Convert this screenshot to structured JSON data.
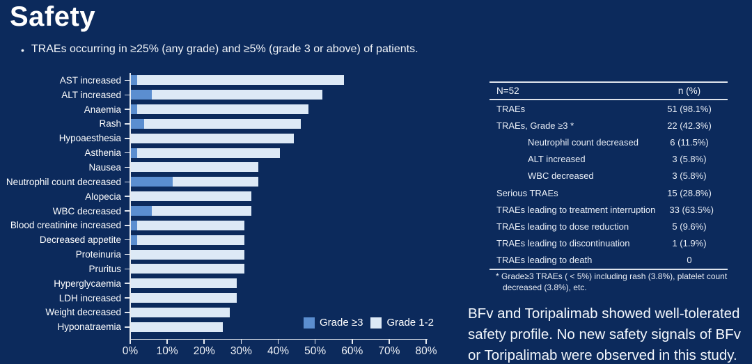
{
  "slide": {
    "title": "Safety",
    "bullet_marker": "•",
    "bullet": "TRAEs occurring in ≥25% (any grade) and ≥5% (grade 3 or above) of patients."
  },
  "chart_data": {
    "type": "bar",
    "orientation": "horizontal",
    "stacked": true,
    "title": "",
    "xlabel": "",
    "ylabel": "",
    "xlim": [
      0,
      80
    ],
    "x_tick_labels": [
      "0%",
      "10%",
      "20%",
      "30%",
      "40%",
      "50%",
      "60%",
      "70%",
      "80%"
    ],
    "grid": false,
    "legend_position": "bottom-right",
    "categories": [
      "AST increased",
      "ALT increased",
      "Anaemia",
      "Rash",
      "Hypoaesthesia",
      "Asthenia",
      "Nausea",
      "Neutrophil count decreased",
      "Alopecia",
      "WBC decreased",
      "Blood creatinine increased",
      "Decreased appetite",
      "Proteinuria",
      "Pruritus",
      "Hyperglycaemia",
      "LDH increased",
      "Weight decreased",
      "Hyponatraemia"
    ],
    "series": [
      {
        "name": "Grade ≥3",
        "color": "#5b8ed0",
        "values": [
          1.9,
          5.8,
          1.9,
          3.8,
          0,
          1.9,
          0,
          11.5,
          0,
          5.8,
          1.9,
          1.9,
          0,
          0,
          0,
          0,
          0,
          0
        ]
      },
      {
        "name": "Grade 1-2",
        "color": "#dde9f6",
        "values": [
          55.8,
          46.1,
          46.2,
          42.4,
          44.2,
          38.5,
          34.6,
          23.1,
          32.7,
          26.9,
          28.9,
          28.9,
          30.8,
          30.8,
          28.8,
          28.8,
          26.9,
          25.0
        ]
      }
    ],
    "totals_any_grade": [
      57.7,
      51.9,
      48.1,
      46.2,
      44.2,
      40.4,
      34.6,
      34.6,
      32.7,
      32.7,
      30.8,
      30.8,
      30.8,
      30.8,
      28.8,
      28.8,
      26.9,
      25.0
    ]
  },
  "table": {
    "header": {
      "left": "N=52",
      "right": "n (%)"
    },
    "rows": [
      {
        "label": "TRAEs",
        "value": "51 (98.1%)",
        "indent": false
      },
      {
        "label": "TRAEs, Grade ≥3 *",
        "value": "22 (42.3%)",
        "indent": false
      },
      {
        "label": "Neutrophil count decreased",
        "value": "6 (11.5%)",
        "indent": true
      },
      {
        "label": "ALT increased",
        "value": "3 (5.8%)",
        "indent": true
      },
      {
        "label": "WBC decreased",
        "value": "3 (5.8%)",
        "indent": true
      },
      {
        "label": "Serious TRAEs",
        "value": "15 (28.8%)",
        "indent": false
      },
      {
        "label": "TRAEs leading to treatment interruption",
        "value": "33 (63.5%)",
        "indent": false
      },
      {
        "label": "TRAEs leading to dose reduction",
        "value": "5 (9.6%)",
        "indent": false
      },
      {
        "label": "TRAEs leading to discontinuation",
        "value": "1 (1.9%)",
        "indent": false
      },
      {
        "label": "TRAEs leading to death",
        "value": "0",
        "indent": false
      }
    ]
  },
  "footnote": "* Grade≥3 TRAEs ( < 5%) including rash (3.8%), platelet count decreased (3.8%), etc.",
  "conclusion": "BFv and Toripalimab showed well-tolerated safety profile. No new safety signals of BFv or Toripalimab were observed in this study.",
  "colors": {
    "background": "#0c2a5c",
    "grade3_blue": "#5b8ed0",
    "grade12_light": "#dde9f6",
    "axis_line": "#e8ecf2",
    "text": "#ffffff"
  }
}
